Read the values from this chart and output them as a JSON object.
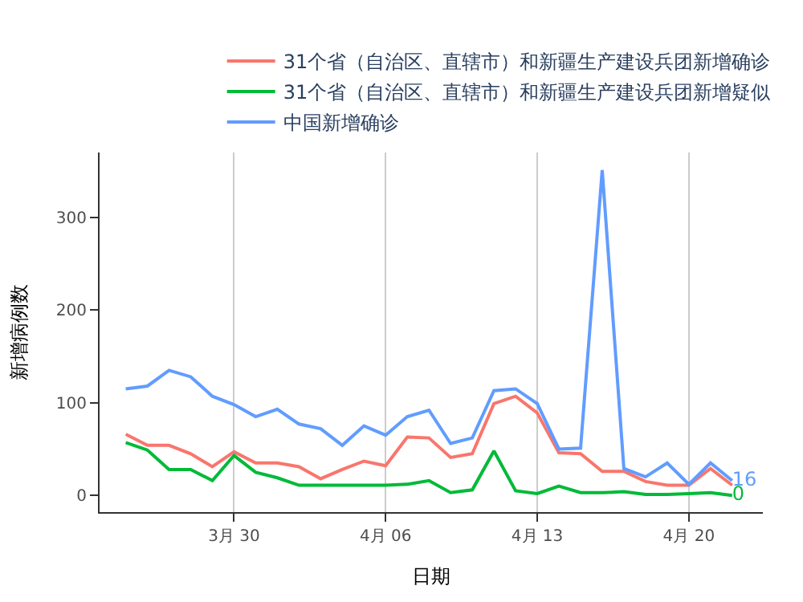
{
  "chart_data": {
    "type": "line",
    "xlabel": "日期",
    "ylabel": "新增病例数",
    "x": [
      "--03-25",
      "--03-26",
      "--03-27",
      "--03-28",
      "--03-29",
      "--03-30",
      "--03-31",
      "--04-01",
      "--04-02",
      "--04-03",
      "--04-04",
      "--04-05",
      "--04-06",
      "--04-07",
      "--04-08",
      "--04-09",
      "--04-10",
      "--04-11",
      "--04-12",
      "--04-13",
      "--04-14",
      "--04-15",
      "--04-16",
      "--04-17",
      "--04-18",
      "--04-19",
      "--04-20",
      "--04-21",
      "--04-22"
    ],
    "series": [
      {
        "name": "31个省（自治区、直辖市）和新疆生产建设兵团新增确诊",
        "color": "#f8766d",
        "values": [
          66,
          54,
          54,
          45,
          31,
          47,
          35,
          35,
          31,
          18,
          28,
          37,
          32,
          63,
          62,
          41,
          45,
          99,
          107,
          89,
          46,
          45,
          26,
          26,
          15,
          11,
          11,
          29,
          11
        ],
        "value_labels": [
          null,
          null,
          null,
          null,
          null,
          null,
          null,
          null,
          null,
          null,
          null,
          null,
          null,
          null,
          null,
          null,
          null,
          null,
          null,
          null,
          null,
          null,
          null,
          null,
          null,
          null,
          null,
          null,
          null
        ]
      },
      {
        "name": "31个省（自治区、直辖市）和新疆生产建设兵团新增疑似",
        "color": "#00ba38",
        "values": [
          57,
          49,
          28,
          28,
          16,
          43,
          25,
          19,
          11,
          11,
          11,
          11,
          11,
          12,
          16,
          3,
          6,
          48,
          5,
          2,
          10,
          3,
          3,
          4,
          1,
          1,
          2,
          3,
          0
        ],
        "value_labels": [
          null,
          null,
          null,
          null,
          null,
          null,
          null,
          null,
          null,
          null,
          null,
          null,
          null,
          null,
          null,
          null,
          null,
          null,
          null,
          null,
          null,
          null,
          null,
          null,
          null,
          null,
          null,
          null,
          "0"
        ]
      },
      {
        "name": "中国新增确诊",
        "color": "#619cff",
        "values": [
          115,
          118,
          135,
          128,
          107,
          98,
          85,
          93,
          77,
          72,
          54,
          75,
          65,
          85,
          92,
          56,
          62,
          113,
          115,
          99,
          50,
          51,
          351,
          29,
          20,
          35,
          12,
          35,
          16
        ],
        "value_labels": [
          null,
          null,
          null,
          null,
          null,
          null,
          null,
          null,
          null,
          null,
          null,
          null,
          null,
          null,
          null,
          null,
          null,
          null,
          null,
          null,
          null,
          null,
          null,
          null,
          null,
          null,
          null,
          null,
          "16"
        ]
      }
    ],
    "xlim": [
      "--03-23T19:00",
      "--04-23T10:00"
    ],
    "xticks": [
      {
        "value": "--03-30",
        "label": "3月 30"
      },
      {
        "value": "--04-06",
        "label": "4月 06"
      },
      {
        "value": "--04-13",
        "label": "4月 13"
      },
      {
        "value": "--04-20",
        "label": "4月 20"
      }
    ],
    "ylim": [
      -18,
      370
    ],
    "yticks": [
      0,
      100,
      200,
      300
    ],
    "grid": "x",
    "legend": "top",
    "line_style": "solid"
  }
}
